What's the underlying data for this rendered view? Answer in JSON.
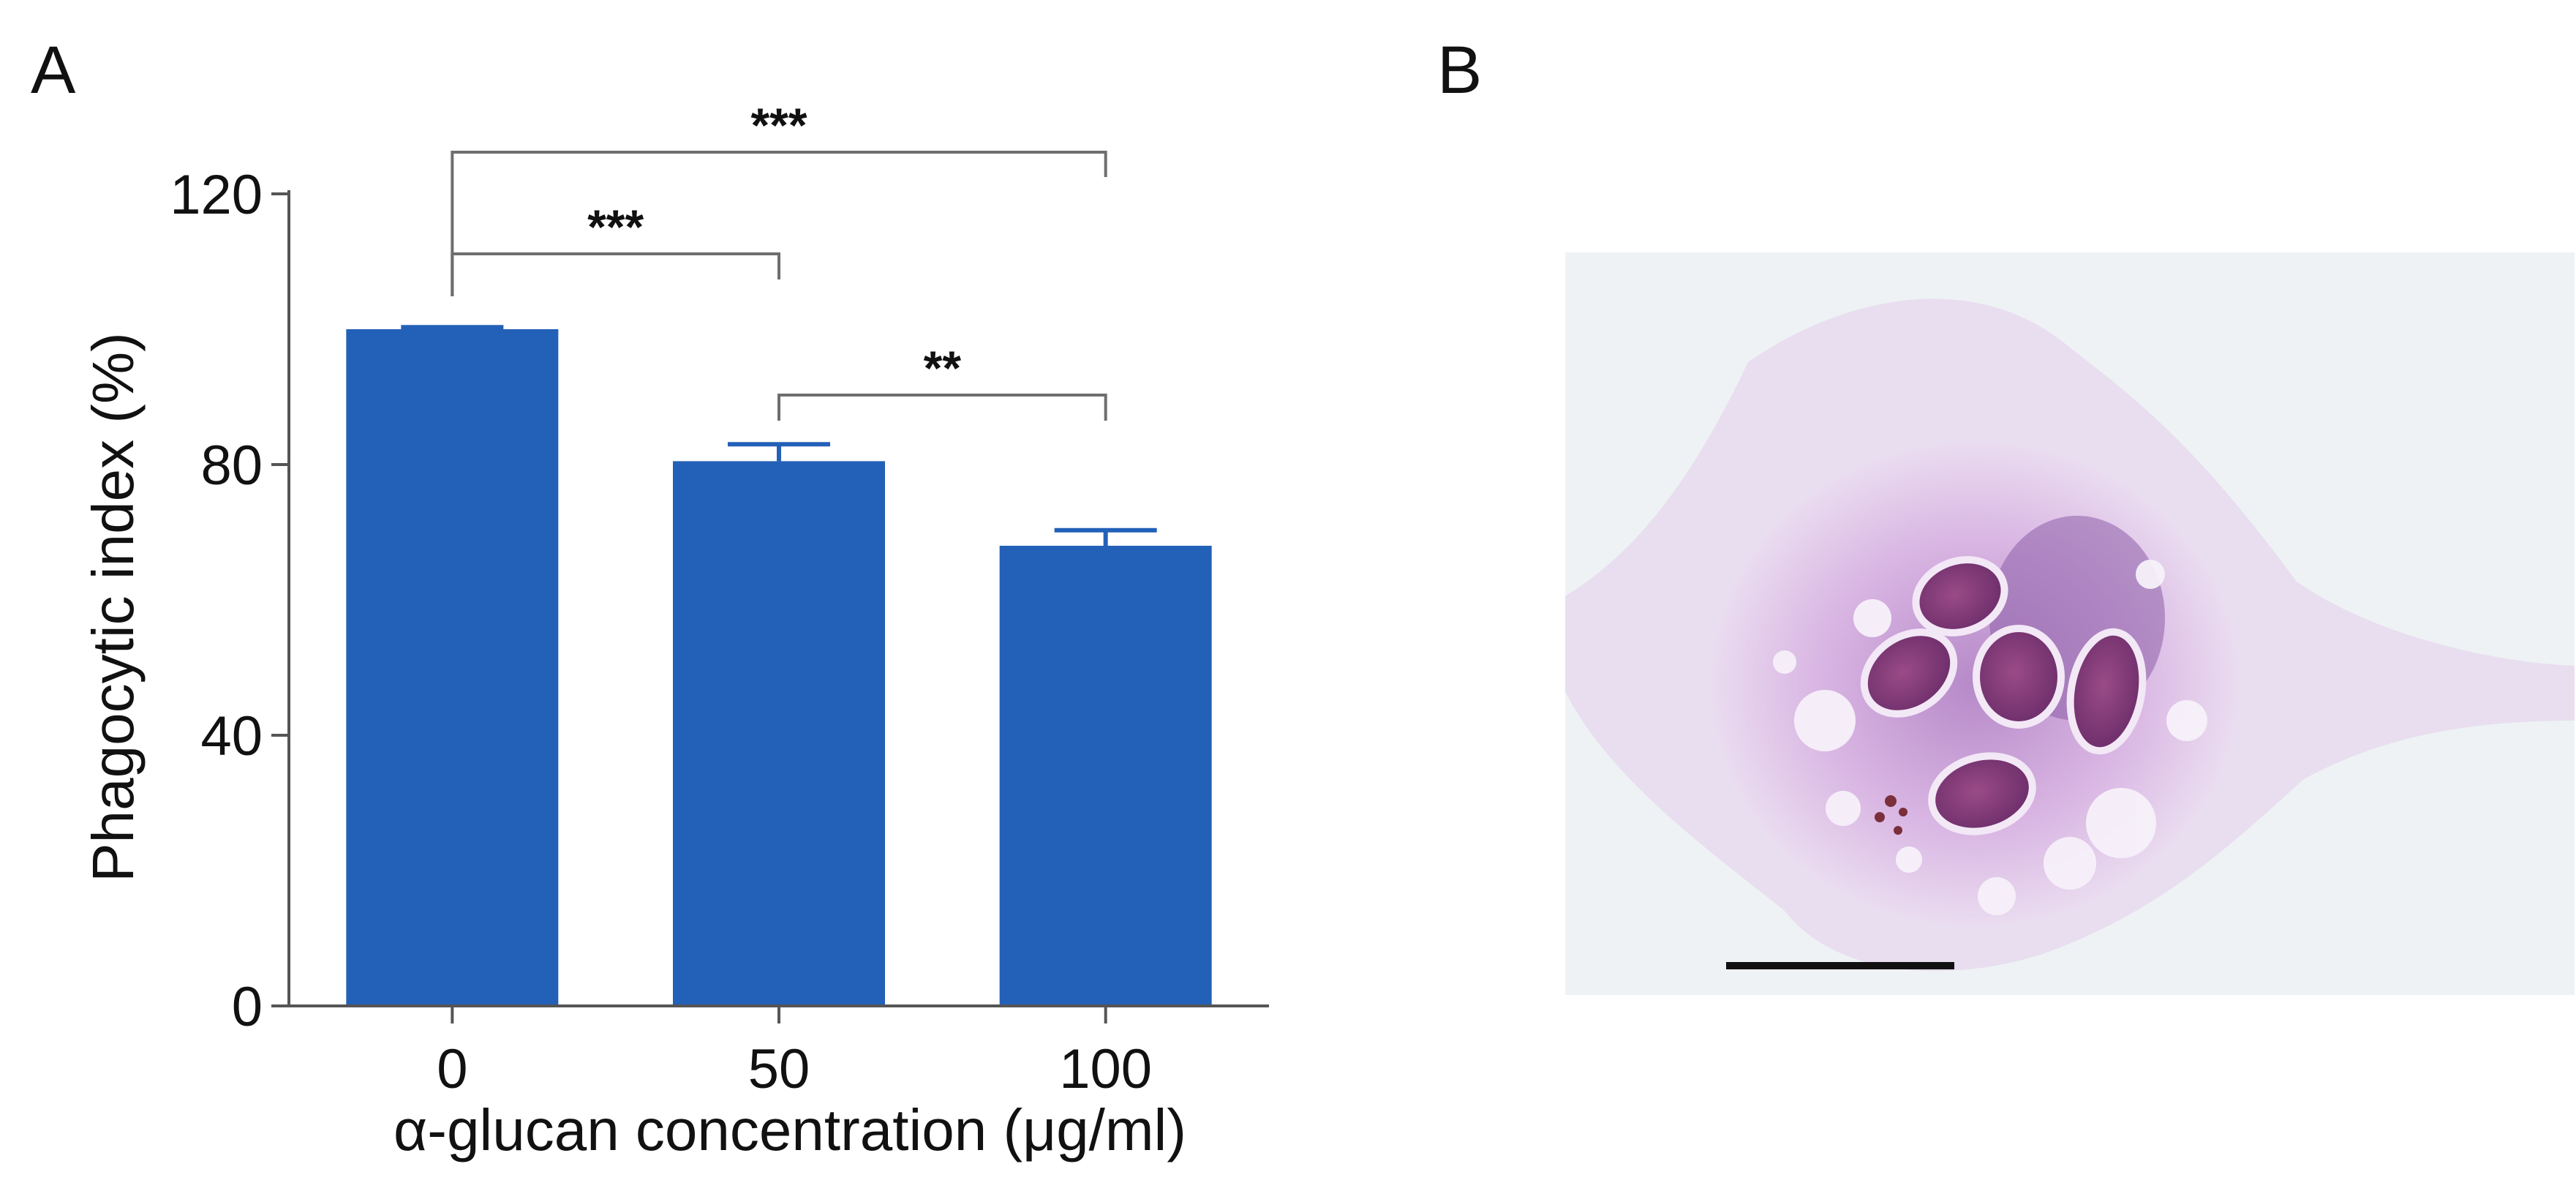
{
  "panels": {
    "a": "A",
    "b": "B"
  },
  "colors": {
    "bar": "#2360b8",
    "axis": "#555555",
    "bracket": "#6e6e6e"
  },
  "chart_data": {
    "type": "bar",
    "categories": [
      "0",
      "50",
      "100"
    ],
    "values": [
      100,
      80.5,
      68
    ],
    "errors": [
      0.3,
      2.5,
      2.3
    ],
    "ylim": [
      0,
      120
    ],
    "yticks": [
      0,
      40,
      80,
      120
    ],
    "xlabel": "α-glucan concentration (μg/ml)",
    "ylabel": "Phagocytic index (%)",
    "significance": [
      {
        "from": "0",
        "to": "100",
        "label": "***"
      },
      {
        "from": "0",
        "to": "50",
        "label": "***"
      },
      {
        "from": "50",
        "to": "100",
        "label": "**"
      }
    ],
    "grid": false
  },
  "micrograph": {
    "icon": "stained-macrophage-micrograph",
    "has_scale_bar": true
  }
}
